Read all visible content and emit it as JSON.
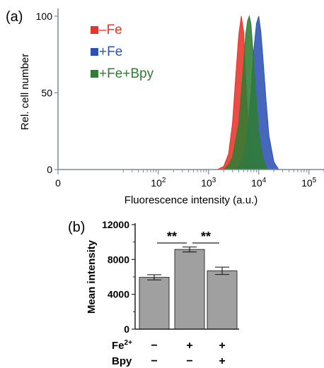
{
  "chart_data": [
    {
      "panel_label": "(a)",
      "type": "area",
      "xlabel": "Fluorescence intensity (a.u.)",
      "ylabel": "Rel. cell number",
      "x_scale": "log",
      "xlim": [
        1,
        200000
      ],
      "ylim": [
        0,
        105
      ],
      "x_ticks": [
        {
          "value": 1,
          "base": "0",
          "exp": ""
        },
        {
          "value": 100,
          "base": "10",
          "exp": "2"
        },
        {
          "value": 1000,
          "base": "10",
          "exp": "3"
        },
        {
          "value": 10000,
          "base": "10",
          "exp": "4"
        },
        {
          "value": 100000,
          "base": "10",
          "exp": "5"
        }
      ],
      "y_ticks": [
        0,
        50,
        100
      ],
      "legend_position": "top-left",
      "series": [
        {
          "name": "–Fe",
          "color": "#e8342a",
          "x": [
            1,
            1500,
            2000,
            2500,
            3000,
            3500,
            4000,
            4500,
            5000,
            5500,
            6000,
            7000,
            8000,
            10000,
            200000
          ],
          "y": [
            0,
            0,
            2,
            10,
            30,
            62,
            88,
            100,
            90,
            60,
            35,
            10,
            3,
            0,
            0
          ]
        },
        {
          "name": "+Fe",
          "color": "#2d52b5",
          "x": [
            1,
            3000,
            4000,
            5000,
            6000,
            7000,
            8000,
            9000,
            10000,
            11000,
            12000,
            14000,
            16000,
            20000,
            25000,
            200000
          ],
          "y": [
            0,
            0,
            2,
            8,
            25,
            50,
            78,
            95,
            100,
            90,
            75,
            45,
            22,
            5,
            0,
            0
          ]
        },
        {
          "name": "+Fe+Bpy",
          "color": "#2f7d33",
          "x": [
            1,
            2000,
            2500,
            3000,
            4000,
            4500,
            5000,
            5500,
            6000,
            6500,
            7000,
            8000,
            9000,
            10000,
            12000,
            15000,
            200000
          ],
          "y": [
            0,
            0,
            3,
            8,
            30,
            50,
            70,
            88,
            97,
            100,
            95,
            70,
            45,
            25,
            8,
            0,
            0
          ]
        }
      ]
    },
    {
      "panel_label": "(b)",
      "type": "bar",
      "ylabel": "Mean intensity",
      "ylim": [
        0,
        12000
      ],
      "y_ticks": [
        0,
        4000,
        8000,
        12000
      ],
      "bar_color": "#a0a0a0",
      "categories": [
        "1",
        "2",
        "3"
      ],
      "values": [
        5950,
        9150,
        6700
      ],
      "errors": [
        300,
        280,
        420
      ],
      "significance": [
        {
          "from": 0,
          "to": 1,
          "label": "**"
        },
        {
          "from": 1,
          "to": 2,
          "label": "**"
        }
      ],
      "condition_rows": [
        {
          "label": "Fe",
          "label_sup": "2+",
          "values": [
            "−",
            "+",
            "+"
          ]
        },
        {
          "label": "Bpy",
          "label_sup": "",
          "values": [
            "−",
            "−",
            "+"
          ]
        }
      ]
    }
  ]
}
